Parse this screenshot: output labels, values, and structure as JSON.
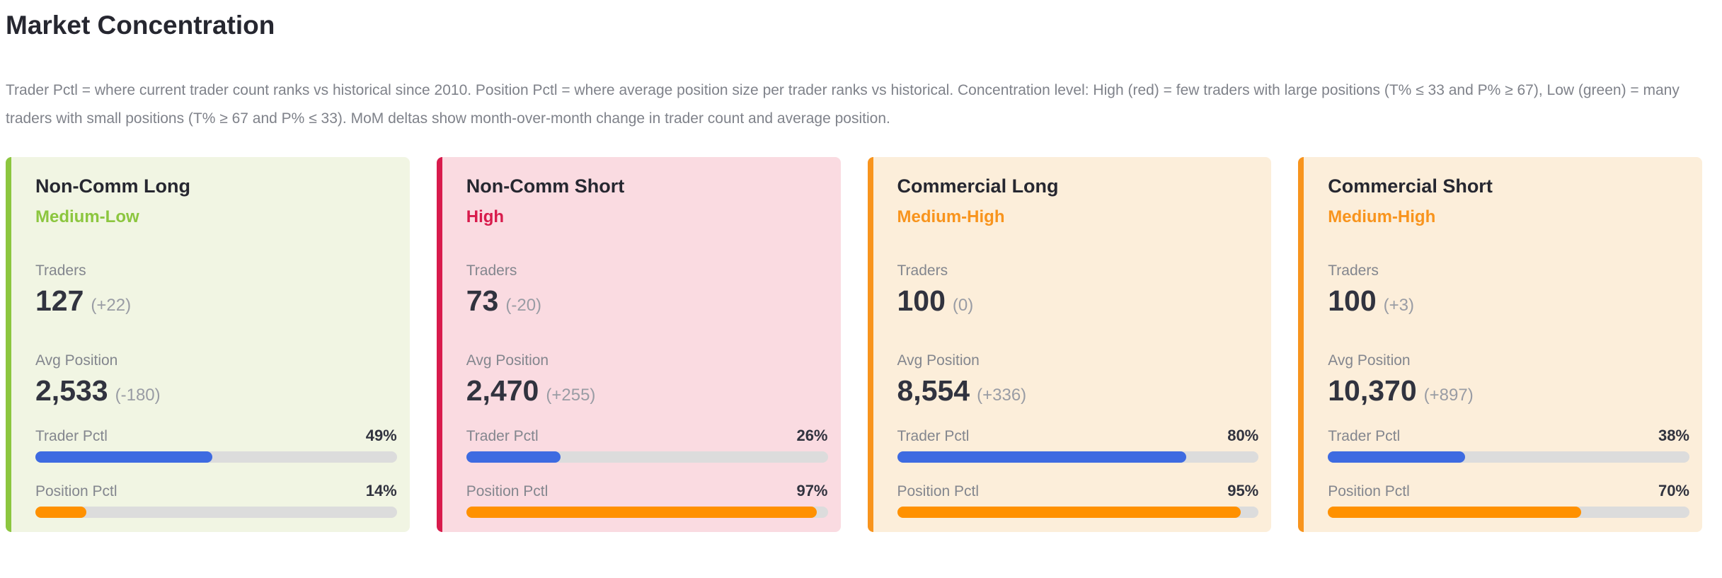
{
  "header": {
    "title": "Market Concentration",
    "description": "Trader Pctl = where current trader count ranks vs historical since 2010. Position Pctl = where average position size per trader ranks vs historical. Concentration level: High (red) = few traders with large positions (T% ≤ 33 and P% ≥ 67), Low (green) = many traders with small positions (T% ≥ 67 and P% ≤ 33). MoM deltas show month-over-month change in trader count and average position."
  },
  "labels": {
    "traders": "Traders",
    "avg_position": "Avg Position",
    "trader_pctl": "Trader Pctl",
    "position_pctl": "Position Pctl"
  },
  "colors": {
    "trader_bar": "#3E6BE1",
    "position_bar": "#FF9100",
    "bar_track": "#DCDCDC",
    "heading_text": "#262730",
    "value_text": "#31333F",
    "muted_text": "#83868E",
    "level_green": "#8CC63F",
    "level_red": "#D81B4C",
    "level_orange": "#F8941D"
  },
  "cards": [
    {
      "name": "Non-Comm Long",
      "level": "Medium-Low",
      "accent": "#8CC63F",
      "background": "#F1F5E3",
      "traders": "127",
      "traders_delta": "(+22)",
      "avg_position": "2,533",
      "avg_position_delta": "(-180)",
      "trader_pctl": "49%",
      "trader_pctl_value": 49,
      "position_pctl": "14%",
      "position_pctl_value": 14
    },
    {
      "name": "Non-Comm Short",
      "level": "High",
      "accent": "#D81B4C",
      "background": "#FADBE1",
      "traders": "73",
      "traders_delta": "(-20)",
      "avg_position": "2,470",
      "avg_position_delta": "(+255)",
      "trader_pctl": "26%",
      "trader_pctl_value": 26,
      "position_pctl": "97%",
      "position_pctl_value": 97
    },
    {
      "name": "Commercial Long",
      "level": "Medium-High",
      "accent": "#F8941D",
      "background": "#FCEEDA",
      "traders": "100",
      "traders_delta": "(0)",
      "avg_position": "8,554",
      "avg_position_delta": "(+336)",
      "trader_pctl": "80%",
      "trader_pctl_value": 80,
      "position_pctl": "95%",
      "position_pctl_value": 95
    },
    {
      "name": "Commercial Short",
      "level": "Medium-High",
      "accent": "#F8941D",
      "background": "#FCEEDA",
      "traders": "100",
      "traders_delta": "(+3)",
      "avg_position": "10,370",
      "avg_position_delta": "(+897)",
      "trader_pctl": "38%",
      "trader_pctl_value": 38,
      "position_pctl": "70%",
      "position_pctl_value": 70
    }
  ]
}
